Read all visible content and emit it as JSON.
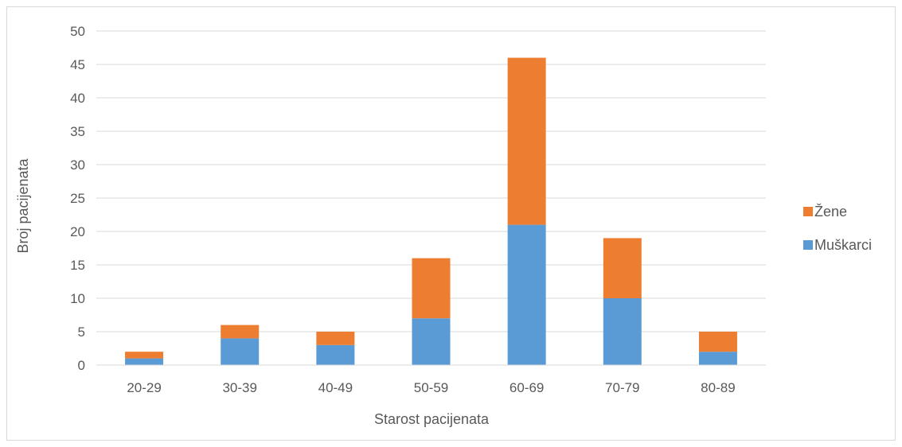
{
  "chart_data": {
    "type": "bar",
    "stacked": true,
    "title": "",
    "xlabel": "Starost pacijenata",
    "ylabel": "Broj pacijenata",
    "categories": [
      "20-29",
      "30-39",
      "40-49",
      "50-59",
      "60-69",
      "70-79",
      "80-89"
    ],
    "series": [
      {
        "name": "Muškarci",
        "color": "#5b9bd5",
        "values": [
          1,
          4,
          3,
          7,
          21,
          10,
          2
        ]
      },
      {
        "name": "Žene",
        "color": "#ed7d31",
        "values": [
          1,
          2,
          2,
          9,
          25,
          9,
          3
        ]
      }
    ],
    "ylim": [
      0,
      50
    ],
    "yticks": [
      0,
      5,
      10,
      15,
      20,
      25,
      30,
      35,
      40,
      45,
      50
    ],
    "grid": true,
    "legend": "right",
    "legend_order": [
      "Žene",
      "Muškarci"
    ]
  }
}
